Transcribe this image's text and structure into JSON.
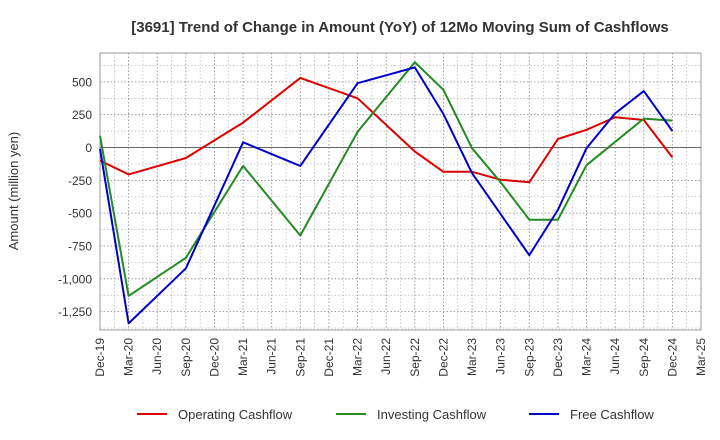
{
  "chart_data": {
    "type": "line",
    "title": "[3691]  Trend of Change in Amount (YoY) of 12Mo Moving Sum of Cashflows",
    "xlabel": "",
    "ylabel": "Amount (million yen)",
    "ylim": [
      -1390,
      720
    ],
    "yticks": [
      500,
      250,
      0,
      -250,
      -500,
      -750,
      -1000,
      -1250
    ],
    "ytick_labels": [
      "500",
      "250",
      "0",
      "-250",
      "-500",
      "-750",
      "-1,000",
      "-1,250"
    ],
    "categories": [
      "Dec-19",
      "Mar-20",
      "Jun-20",
      "Sep-20",
      "Dec-20",
      "Mar-21",
      "Jun-21",
      "Sep-21",
      "Dec-21",
      "Mar-22",
      "Jun-22",
      "Sep-22",
      "Dec-22",
      "Mar-23",
      "Jun-23",
      "Sep-23",
      "Dec-23",
      "Mar-24",
      "Jun-24",
      "Sep-24",
      "Dec-24",
      "Mar-25"
    ],
    "grid": true,
    "legend_position": "bottom",
    "series": [
      {
        "name": "Operating Cashflow",
        "color": "#dd0000",
        "values": [
          -100,
          -205,
          null,
          -80,
          null,
          190,
          null,
          530,
          null,
          375,
          null,
          -30,
          -185,
          -185,
          -245,
          -265,
          65,
          135,
          230,
          210,
          -75,
          null
        ]
      },
      {
        "name": "Investing Cashflow",
        "color": "#228b22",
        "values": [
          90,
          -1130,
          null,
          -840,
          null,
          -140,
          null,
          -670,
          null,
          120,
          null,
          650,
          440,
          -5,
          -265,
          -550,
          -550,
          -135,
          null,
          220,
          205,
          null
        ]
      },
      {
        "name": "Free Cashflow",
        "color": "#0000cc",
        "values": [
          -10,
          -1340,
          null,
          -920,
          null,
          40,
          null,
          -140,
          null,
          490,
          null,
          610,
          255,
          -195,
          null,
          -820,
          -475,
          -5,
          260,
          430,
          125,
          null
        ]
      }
    ]
  }
}
